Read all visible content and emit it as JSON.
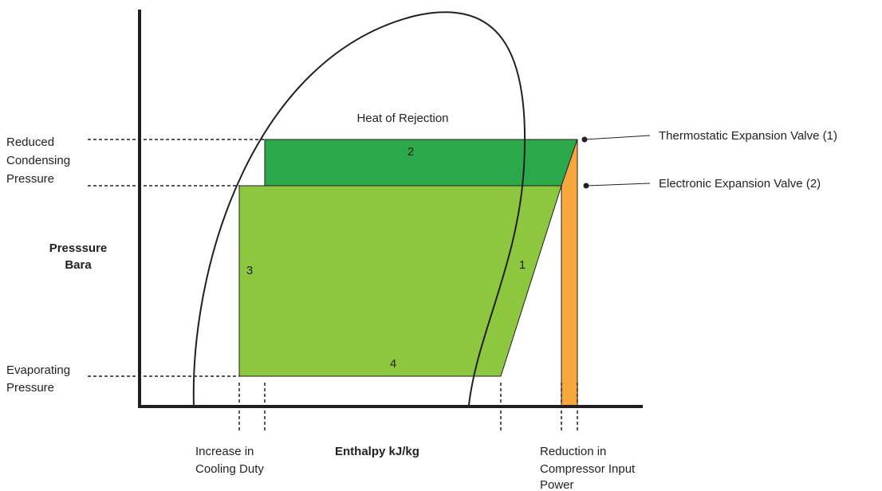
{
  "diagram": {
    "heat_of_rejection": "Heat of Rejection",
    "reduced_condensing_pressure": [
      "Reduced",
      "Condensing",
      "Pressure"
    ],
    "evaporating_pressure": [
      "Evaporating",
      "Pressure"
    ],
    "y_axis_label": [
      "Presssure",
      "Bara"
    ],
    "x_axis_label": "Enthalpy kJ/kg",
    "increase_in_cooling_duty": [
      "Increase in",
      "Cooling Duty"
    ],
    "reduction_in_compressor_input_power": [
      "Reduction in",
      "Compressor Input",
      "Power"
    ],
    "thermostatic_expansion_valve": "Thermostatic Expansion Valve (1)",
    "electronic_expansion_valve": "Electronic Expansion Valve (2)",
    "regions": [
      "1",
      "2",
      "3",
      "4"
    ]
  }
}
